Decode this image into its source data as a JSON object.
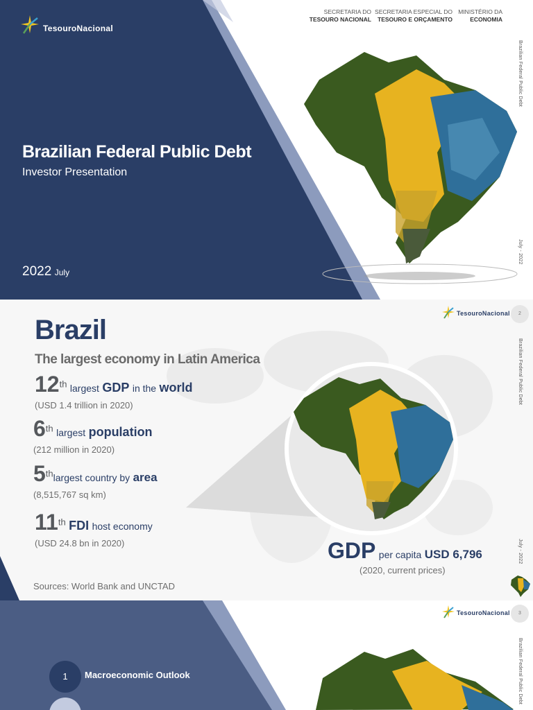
{
  "slide1": {
    "logo_text": "TesouroNacional",
    "ministries": [
      {
        "line1": "SECRETARIA DO",
        "line2": "TESOURO NACIONAL"
      },
      {
        "line1": "SECRETARIA ESPECIAL DO",
        "line2": "TESOURO E ORÇAMENTO"
      },
      {
        "line1": "MINISTÉRIO DA",
        "line2": "ECONOMIA"
      }
    ],
    "title": "Brazilian Federal Public Debt",
    "subtitle": "Investor Presentation",
    "year": "2022",
    "month": "July",
    "side_title": "Brazilian Federal Public Debt",
    "side_date": "July - 2022"
  },
  "slide2": {
    "logo_text": "TesouroNacional",
    "page_number": "2",
    "title": "Brazil",
    "subtitle": "The largest economy in Latin America",
    "stats": [
      {
        "num": "12",
        "sup": "th",
        "pre": "largest",
        "key": "GDP",
        "mid": "in the",
        "key2": "world",
        "sub": "(USD 1.4 trillion in 2020)"
      },
      {
        "num": "6",
        "sup": "th",
        "pre": "largest",
        "key": "population",
        "sub": "(212 million in 2020)"
      },
      {
        "num": "5",
        "sup": "th",
        "pre": "largest country by",
        "key": "area",
        "sub": "(8,515,767 sq km)"
      },
      {
        "num": "11",
        "sup": "th",
        "key": "FDI",
        "pre": "host economy",
        "sub": "(USD 24.8 bn in 2020)"
      }
    ],
    "gdp_label": "GDP",
    "gdp_mid": "per capita",
    "gdp_value": "USD 6,796",
    "gdp_note": "(2020, current prices)",
    "sources": "Sources: World Bank and UNCTAD",
    "side_title": "Brazilian Federal Public Debt",
    "side_date": "July - 2022"
  },
  "slide3": {
    "logo_text": "TesouroNacional",
    "page_number": "3",
    "agenda": [
      {
        "num": "1",
        "label": "Macroeconomic Outlook"
      }
    ],
    "side_title": "Brazilian Federal Public Debt"
  },
  "colors": {
    "navy": "#2a3e66",
    "accent_blue": "#7f8fb5",
    "brazil_green": "#3a5a1f",
    "brazil_yellow": "#e7b320",
    "brazil_blue": "#2f6f9a"
  }
}
